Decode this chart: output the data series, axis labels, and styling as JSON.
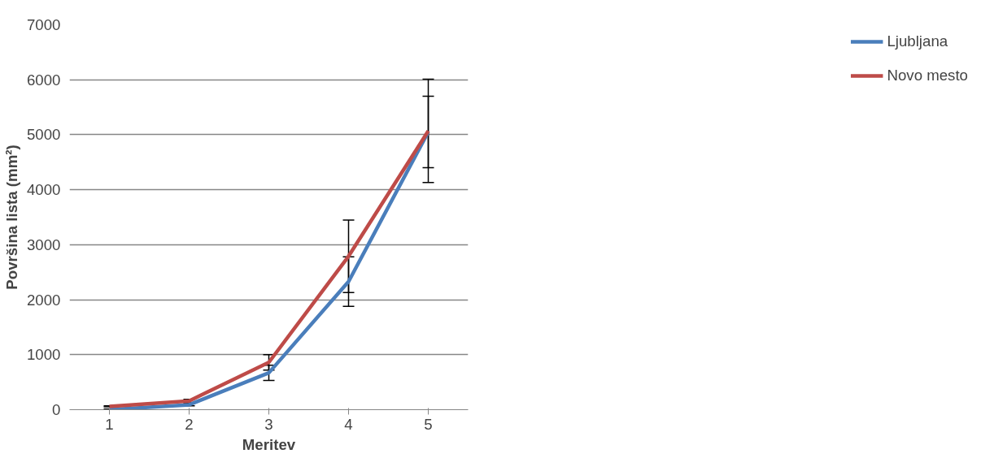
{
  "chart_data": {
    "type": "line",
    "xlabel": "Meritev",
    "ylabel": "Površina lista (mm²)",
    "categories": [
      "1",
      "2",
      "3",
      "4",
      "5"
    ],
    "series": [
      {
        "name": "Ljubljana",
        "color": "#4a7ebb",
        "values": [
          0,
          90,
          670,
          2330,
          5050
        ],
        "errors": [
          10,
          20,
          140,
          450,
          650
        ]
      },
      {
        "name": "Novo mesto",
        "color": "#be4b48",
        "values": [
          60,
          160,
          860,
          2790,
          5070
        ],
        "errors": [
          10,
          30,
          140,
          660,
          940
        ]
      }
    ],
    "ylim": [
      0,
      7000
    ],
    "yticks": [
      0,
      1000,
      2000,
      3000,
      4000,
      5000,
      6000,
      7000
    ],
    "grid": "y",
    "legend": "right",
    "marker": "none",
    "line_style": "solid"
  }
}
